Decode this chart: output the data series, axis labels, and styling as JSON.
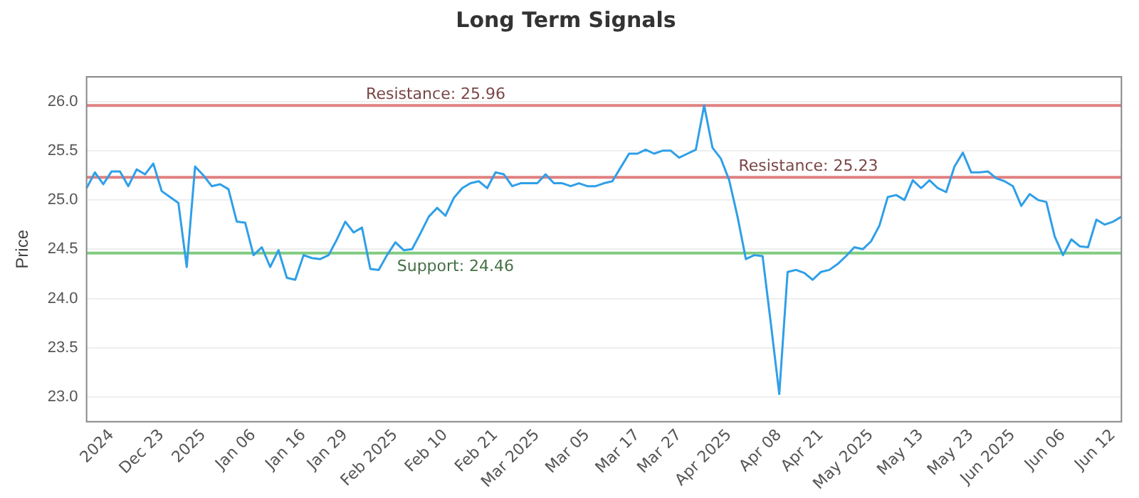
{
  "chart_data": {
    "type": "line",
    "title": "Long Term Signals",
    "ylabel": "Price",
    "categories": [
      null,
      null,
      null,
      "2024",
      null,
      null,
      null,
      null,
      null,
      "Dec 23",
      null,
      null,
      null,
      null,
      "2025",
      null,
      null,
      null,
      null,
      null,
      "Jan 06",
      null,
      null,
      null,
      null,
      null,
      "Jan 16",
      null,
      null,
      null,
      null,
      "Jan 29",
      null,
      null,
      null,
      null,
      null,
      "Feb 2025",
      null,
      null,
      null,
      null,
      null,
      "Feb 10",
      null,
      null,
      null,
      null,
      null,
      "Feb 21",
      null,
      null,
      null,
      null,
      "Mar 2025",
      null,
      null,
      null,
      null,
      null,
      "Mar 05",
      null,
      null,
      null,
      null,
      null,
      "Mar 17",
      null,
      null,
      null,
      null,
      "Mar 27",
      null,
      null,
      null,
      null,
      null,
      "Apr 2025",
      null,
      null,
      null,
      null,
      null,
      "Apr 08",
      null,
      null,
      null,
      null,
      "Apr 21",
      null,
      null,
      null,
      null,
      null,
      "May 2025",
      null,
      null,
      null,
      null,
      null,
      "May 13",
      null,
      null,
      null,
      null,
      null,
      "May 23",
      null,
      null,
      null,
      null,
      "Jun 2025",
      null,
      null,
      null,
      null,
      null,
      "Jun 06",
      null,
      null,
      null,
      null,
      null,
      "Jun 12",
      null
    ],
    "series": [
      {
        "color": "#2f9fe8",
        "values": [
          25.12,
          25.28,
          25.16,
          25.29,
          25.29,
          25.14,
          25.31,
          25.26,
          25.37,
          25.09,
          25.03,
          24.97,
          24.32,
          25.34,
          25.25,
          25.14,
          25.16,
          25.11,
          24.78,
          24.77,
          24.44,
          24.52,
          24.32,
          24.49,
          24.21,
          24.19,
          24.44,
          24.41,
          24.4,
          24.44,
          24.6,
          24.78,
          24.67,
          24.72,
          24.3,
          24.29,
          24.44,
          24.57,
          24.49,
          24.5,
          24.66,
          24.83,
          24.92,
          24.84,
          25.02,
          25.12,
          25.17,
          25.19,
          25.12,
          25.28,
          25.26,
          25.14,
          25.17,
          25.17,
          25.17,
          25.26,
          25.17,
          25.17,
          25.14,
          25.17,
          25.14,
          25.14,
          25.17,
          25.19,
          25.33,
          25.47,
          25.47,
          25.51,
          25.47,
          25.5,
          25.5,
          25.43,
          25.47,
          25.51,
          25.96,
          25.53,
          25.42,
          25.2,
          24.83,
          24.4,
          24.44,
          24.43,
          23.74,
          23.03,
          24.27,
          24.29,
          24.26,
          24.19,
          24.27,
          24.29,
          24.35,
          24.43,
          24.52,
          24.5,
          24.58,
          24.74,
          25.03,
          25.05,
          25.0,
          25.2,
          25.12,
          25.2,
          25.12,
          25.08,
          25.34,
          25.48,
          25.28,
          25.28,
          25.29,
          25.22,
          25.19,
          25.14,
          24.94,
          25.06,
          25.0,
          24.98,
          24.63,
          24.44,
          24.6,
          24.53,
          24.52,
          24.8,
          24.75,
          24.78,
          24.83
        ]
      }
    ],
    "ylim": [
      22.75,
      26.25
    ],
    "yticks": [
      {
        "value": 23,
        "label": "23.0"
      },
      {
        "value": 23.5,
        "label": "23.5"
      },
      {
        "value": 24,
        "label": "24.0"
      },
      {
        "value": 24.5,
        "label": "24.5"
      },
      {
        "value": 25,
        "label": "25.0"
      },
      {
        "value": 25.5,
        "label": "25.5"
      },
      {
        "value": 26,
        "label": "26.0"
      }
    ],
    "ref_lines": [
      {
        "axis": "y",
        "value": 25.96,
        "label": "Resistance: 25.96",
        "color": "#e08080"
      },
      {
        "axis": "y",
        "value": 25.23,
        "label": "Resistance: 25.23",
        "color": "#e08080"
      },
      {
        "axis": "y",
        "value": 24.46,
        "label": "Support: 24.46",
        "color": "#80cc80"
      }
    ],
    "grid": "y",
    "legend": false,
    "marker": "none",
    "line_style": "solid"
  }
}
